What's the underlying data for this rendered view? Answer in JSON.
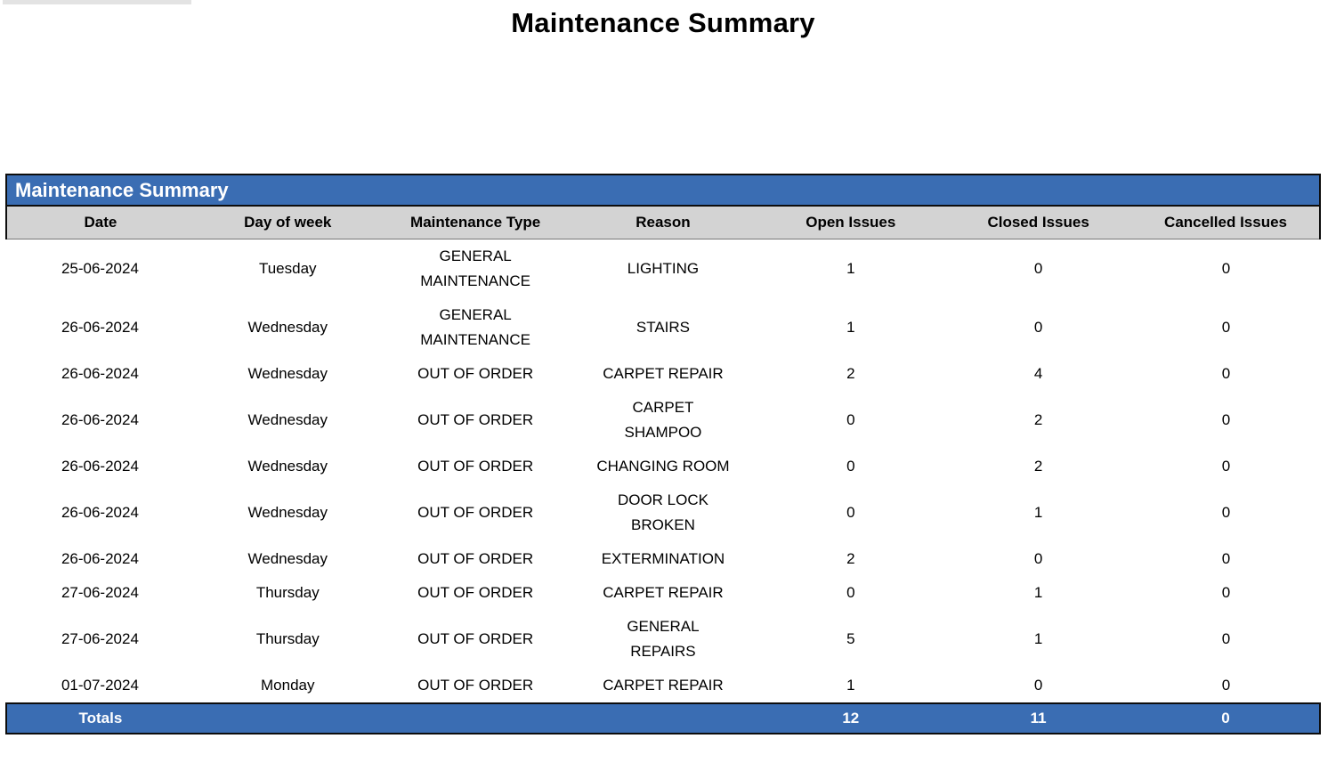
{
  "page": {
    "title": "Maintenance Summary"
  },
  "colors": {
    "accent_blue": "#3a6db3",
    "header_gray": "#d3d3d3",
    "border_black": "#0d0d0d"
  },
  "table": {
    "title": "Maintenance Summary",
    "columns": [
      "Date",
      "Day of week",
      "Maintenance Type",
      "Reason",
      "Open Issues",
      "Closed Issues",
      "Cancelled Issues"
    ],
    "rows": [
      {
        "date": "25-06-2024",
        "day": "Tuesday",
        "type": "GENERAL\nMAINTENANCE",
        "reason": "LIGHTING",
        "open": "1",
        "closed": "0",
        "cancelled": "0"
      },
      {
        "date": "26-06-2024",
        "day": "Wednesday",
        "type": "GENERAL\nMAINTENANCE",
        "reason": "STAIRS",
        "open": "1",
        "closed": "0",
        "cancelled": "0"
      },
      {
        "date": "26-06-2024",
        "day": "Wednesday",
        "type": "OUT OF ORDER",
        "reason": "CARPET REPAIR",
        "open": "2",
        "closed": "4",
        "cancelled": "0"
      },
      {
        "date": "26-06-2024",
        "day": "Wednesday",
        "type": "OUT OF ORDER",
        "reason": "CARPET\nSHAMPOO",
        "open": "0",
        "closed": "2",
        "cancelled": "0"
      },
      {
        "date": "26-06-2024",
        "day": "Wednesday",
        "type": "OUT OF ORDER",
        "reason": "CHANGING ROOM",
        "open": "0",
        "closed": "2",
        "cancelled": "0"
      },
      {
        "date": "26-06-2024",
        "day": "Wednesday",
        "type": "OUT OF ORDER",
        "reason": "DOOR LOCK\nBROKEN",
        "open": "0",
        "closed": "1",
        "cancelled": "0"
      },
      {
        "date": "26-06-2024",
        "day": "Wednesday",
        "type": "OUT OF ORDER",
        "reason": "EXTERMINATION",
        "open": "2",
        "closed": "0",
        "cancelled": "0"
      },
      {
        "date": "27-06-2024",
        "day": "Thursday",
        "type": "OUT OF ORDER",
        "reason": "CARPET REPAIR",
        "open": "0",
        "closed": "1",
        "cancelled": "0"
      },
      {
        "date": "27-06-2024",
        "day": "Thursday",
        "type": "OUT OF ORDER",
        "reason": "GENERAL\nREPAIRS",
        "open": "5",
        "closed": "1",
        "cancelled": "0"
      },
      {
        "date": "01-07-2024",
        "day": "Monday",
        "type": "OUT OF ORDER",
        "reason": "CARPET REPAIR",
        "open": "1",
        "closed": "0",
        "cancelled": "0"
      }
    ],
    "totals": {
      "label": "Totals",
      "open": "12",
      "closed": "11",
      "cancelled": "0"
    }
  }
}
